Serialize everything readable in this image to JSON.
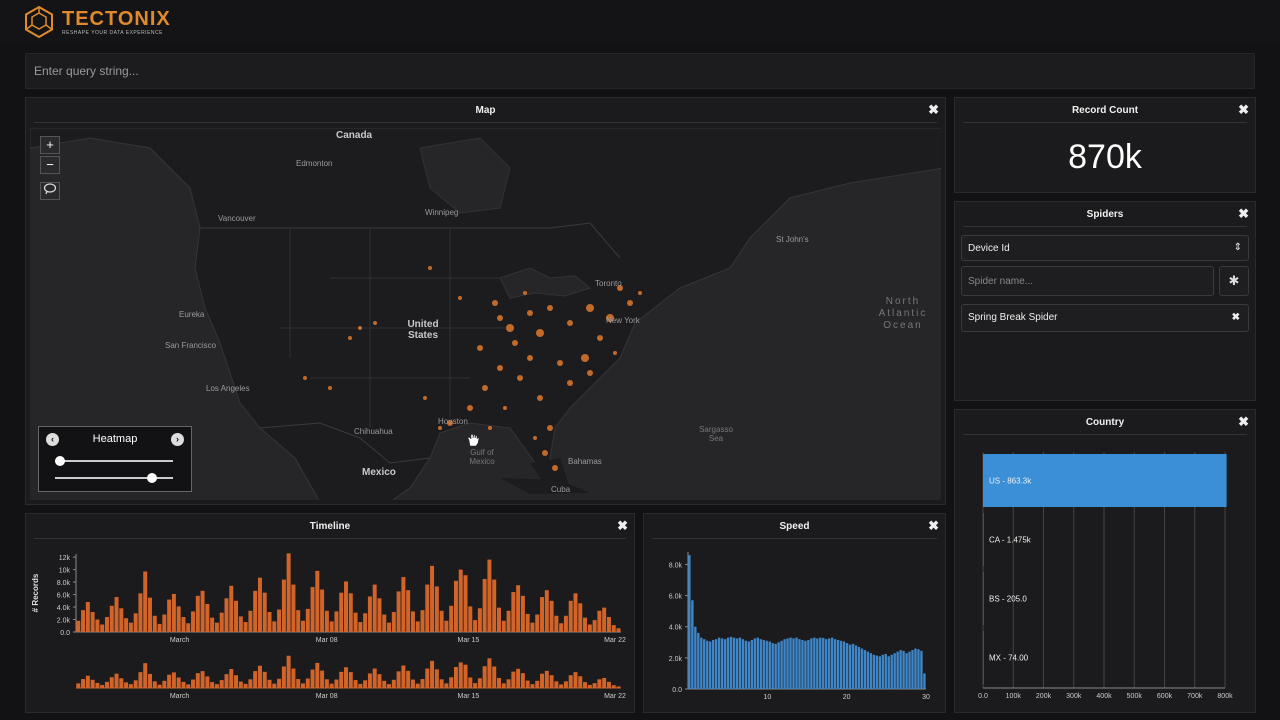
{
  "brand": {
    "name": "TECTONIX",
    "tagline": "RESHAPE YOUR DATA EXPERIENCE",
    "accent": "#e08a2c"
  },
  "query": {
    "placeholder": "Enter query string..."
  },
  "map": {
    "title": "Map",
    "close": "✖",
    "zoom_in": "+",
    "zoom_out": "−",
    "lasso_icon": "lasso-icon",
    "labels": {
      "canada": "Canada",
      "edmonton": "Edmonton",
      "vancouver": "Vancouver",
      "winnipeg": "Winnipeg",
      "stjohns": "St John's",
      "toronto": "Toronto",
      "newyork": "New York",
      "eureka": "Eureka",
      "sanfrancisco": "San Francisco",
      "losangeles": "Los Angeles",
      "us": "United States",
      "chihuahua": "Chihuahua",
      "houston": "Houston",
      "gulf": "Gulf of Mexico",
      "mexico": "Mexico",
      "bahamas": "Bahamas",
      "cuba": "Cuba",
      "sargasso": "Sargasso Sea",
      "atlantic": "North Atlantic Ocean"
    },
    "heatmap": {
      "title": "Heatmap",
      "prev": "‹",
      "next": "›",
      "slider1": 0.0,
      "slider2": 0.85
    }
  },
  "record_count": {
    "title": "Record Count",
    "value": "870k",
    "close": "✖"
  },
  "spiders": {
    "title": "Spiders",
    "close": "✖",
    "select_value": "Device Id",
    "select_arrow": "⇕",
    "name_placeholder": "Spider name...",
    "bug_icon": "bug-icon",
    "bug_glyph": "✱",
    "items": [
      {
        "label": "Spring Break Spider",
        "remove": "✖"
      }
    ]
  },
  "country": {
    "title": "Country",
    "close": "✖"
  },
  "timeline": {
    "title": "Timeline",
    "close": "✖"
  },
  "speed": {
    "title": "Speed",
    "close": "✖"
  },
  "chart_data": [
    {
      "type": "bar",
      "name": "country",
      "orientation": "horizontal",
      "categories": [
        "US - 863.3k",
        "CA - 1.475k",
        "BS - 205.0",
        "MX - 74.00"
      ],
      "values": [
        863300,
        1475,
        205,
        74
      ],
      "xlim": [
        0,
        850000
      ],
      "xticks": [
        "0.0",
        "100k",
        "200k",
        "300k",
        "400k",
        "500k",
        "600k",
        "700k",
        "800k"
      ],
      "color": "#3b8fd6",
      "grid": true
    },
    {
      "type": "bar",
      "name": "timeline",
      "ylabel": "# Records",
      "yticks": [
        "0.0",
        "2.0k",
        "4.0k",
        "6.0k",
        "8.0k",
        "10k",
        "12k"
      ],
      "ylim": [
        0,
        12500
      ],
      "xticks": [
        "March",
        "Mar 08",
        "Mar 15",
        "Mar 22"
      ],
      "color": "#d2642a",
      "values": [
        1800,
        3500,
        4800,
        3200,
        2000,
        1200,
        2400,
        4200,
        5600,
        3800,
        2200,
        1500,
        3000,
        6200,
        9700,
        5500,
        2600,
        1300,
        2800,
        5200,
        6100,
        4100,
        2400,
        1400,
        3300,
        5800,
        6600,
        4500,
        2300,
        1500,
        3100,
        5400,
        7400,
        5000,
        2500,
        1600,
        3400,
        6600,
        8700,
        6300,
        3200,
        1700,
        3600,
        8400,
        12600,
        7600,
        3500,
        1800,
        3700,
        7200,
        9800,
        6800,
        3400,
        1700,
        3300,
        6300,
        8100,
        6200,
        3100,
        1600,
        3000,
        5700,
        7600,
        5400,
        2800,
        1500,
        3200,
        6500,
        8800,
        6700,
        3300,
        1700,
        3500,
        7600,
        10600,
        7300,
        3400,
        1800,
        4200,
        8200,
        10000,
        9100,
        4100,
        1900,
        3800,
        8500,
        11600,
        8400,
        3900,
        1800,
        3400,
        6400,
        7500,
        5800,
        2900,
        1500,
        2800,
        5600,
        6700,
        5000,
        2600,
        1400,
        2600,
        5000,
        6200,
        4600,
        2300,
        1200,
        1900,
        3400,
        3900,
        2400,
        1100,
        600
      ]
    },
    {
      "type": "bar",
      "name": "speed",
      "yticks": [
        "0.0",
        "2.0k",
        "4.0k",
        "6.0k",
        "8.0k"
      ],
      "ylim": [
        0,
        8800
      ],
      "xticks": [
        "10",
        "20",
        "30"
      ],
      "xlim": [
        0,
        30
      ],
      "color": "#3f86c8",
      "values": [
        8600,
        5700,
        4000,
        3600,
        3300,
        3200,
        3100,
        3050,
        3150,
        3200,
        3300,
        3250,
        3200,
        3300,
        3350,
        3300,
        3250,
        3300,
        3200,
        3100,
        3050,
        3150,
        3250,
        3300,
        3200,
        3150,
        3100,
        3050,
        2950,
        2900,
        3000,
        3100,
        3200,
        3250,
        3300,
        3250,
        3300,
        3200,
        3150,
        3100,
        3150,
        3250,
        3300,
        3250,
        3300,
        3280,
        3200,
        3250,
        3300,
        3200,
        3150,
        3100,
        3050,
        2950,
        2850,
        2900,
        2800,
        2700,
        2600,
        2500,
        2400,
        2300,
        2200,
        2150,
        2100,
        2200,
        2250,
        2100,
        2200,
        2300,
        2400,
        2500,
        2450,
        2300,
        2400,
        2500,
        2600,
        2550,
        2450,
        1000
      ]
    }
  ]
}
